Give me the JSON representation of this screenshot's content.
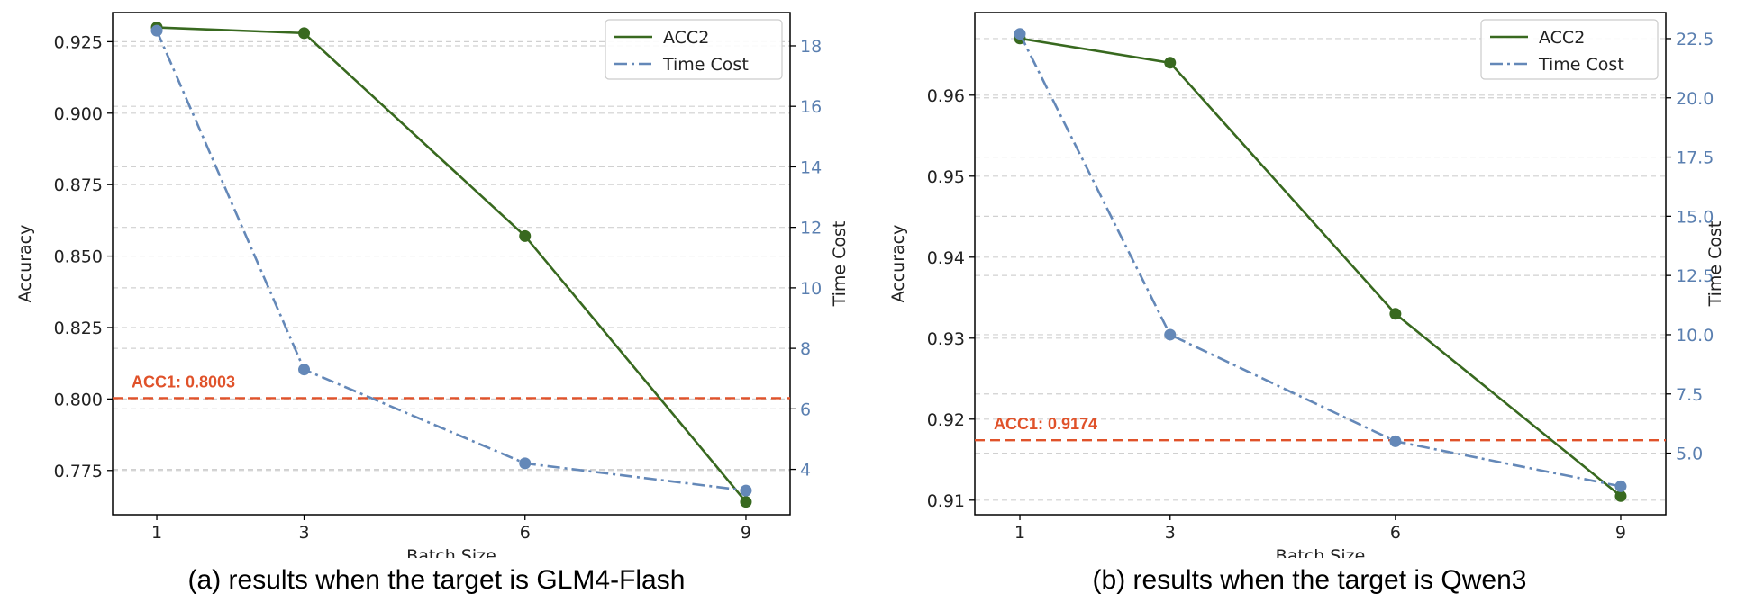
{
  "figure": {
    "colors": {
      "acc2": "#38691f",
      "time_cost": "#6488b8",
      "acc1": "#e0522a",
      "grid": "#d0d0d0",
      "axis": "#000000",
      "right_tick_text": "#5a7fb0"
    }
  },
  "chart_data": [
    {
      "type": "line",
      "caption": "(a) results when the target is GLM4-Flash",
      "xlabel": "Batch Size",
      "ylabel": "Accuracy",
      "y2label": "Time Cost",
      "x": [
        1,
        3,
        6,
        9
      ],
      "x_ticks": [
        1,
        3,
        6,
        9
      ],
      "x_tick_labels": [
        "1",
        "3",
        "6",
        "9"
      ],
      "xlim": [
        0.4,
        9.6
      ],
      "ylim": [
        0.7595,
        0.9352
      ],
      "y_ticks": [
        0.775,
        0.8,
        0.825,
        0.85,
        0.875,
        0.9,
        0.925
      ],
      "y_tick_labels": [
        "0.775",
        "0.800",
        "0.825",
        "0.850",
        "0.875",
        "0.900",
        "0.925"
      ],
      "y2lim": [
        2.5,
        19.1
      ],
      "y2_ticks": [
        4,
        6,
        8,
        10,
        12,
        14,
        16,
        18
      ],
      "y2_tick_labels": [
        "4",
        "6",
        "8",
        "10",
        "12",
        "14",
        "16",
        "18"
      ],
      "series": [
        {
          "name": "ACC2",
          "axis": "left",
          "style": "solid",
          "values": [
            0.93,
            0.928,
            0.857,
            0.764
          ]
        },
        {
          "name": "Time Cost",
          "axis": "right",
          "style": "dashdot",
          "values": [
            18.5,
            7.3,
            4.2,
            3.3
          ]
        }
      ],
      "hline": {
        "value": 0.8003,
        "label": "ACC1: 0.8003",
        "axis": "left"
      },
      "legend": {
        "position": "top-right",
        "entries": [
          "ACC2",
          "Time Cost"
        ]
      },
      "grid": "horizontal-dashed"
    },
    {
      "type": "line",
      "caption": "(b) results when the target is Qwen3",
      "xlabel": "Batch Size",
      "ylabel": "Accuracy",
      "y2label": "Time Cost",
      "x": [
        1,
        3,
        6,
        9
      ],
      "x_ticks": [
        1,
        3,
        6,
        9
      ],
      "x_tick_labels": [
        "1",
        "3",
        "6",
        "9"
      ],
      "xlim": [
        0.4,
        9.6
      ],
      "ylim": [
        0.9082,
        0.9702
      ],
      "y_ticks": [
        0.91,
        0.92,
        0.93,
        0.94,
        0.95,
        0.96
      ],
      "y_tick_labels": [
        "0.91",
        "0.92",
        "0.93",
        "0.94",
        "0.95",
        "0.96"
      ],
      "y2lim": [
        2.4,
        23.6
      ],
      "y2_ticks": [
        5.0,
        7.5,
        10.0,
        12.5,
        15.0,
        17.5,
        20.0,
        22.5
      ],
      "y2_tick_labels": [
        "5.0",
        "7.5",
        "10.0",
        "12.5",
        "15.0",
        "17.5",
        "20.0",
        "22.5"
      ],
      "series": [
        {
          "name": "ACC2",
          "axis": "left",
          "style": "solid",
          "values": [
            0.967,
            0.964,
            0.933,
            0.9105
          ]
        },
        {
          "name": "Time Cost",
          "axis": "right",
          "style": "dashdot",
          "values": [
            22.7,
            10.0,
            5.5,
            3.6
          ]
        }
      ],
      "hline": {
        "value": 0.9174,
        "label": "ACC1: 0.9174",
        "axis": "left"
      },
      "legend": {
        "position": "top-right",
        "entries": [
          "ACC2",
          "Time Cost"
        ]
      },
      "grid": "horizontal-dashed"
    }
  ]
}
